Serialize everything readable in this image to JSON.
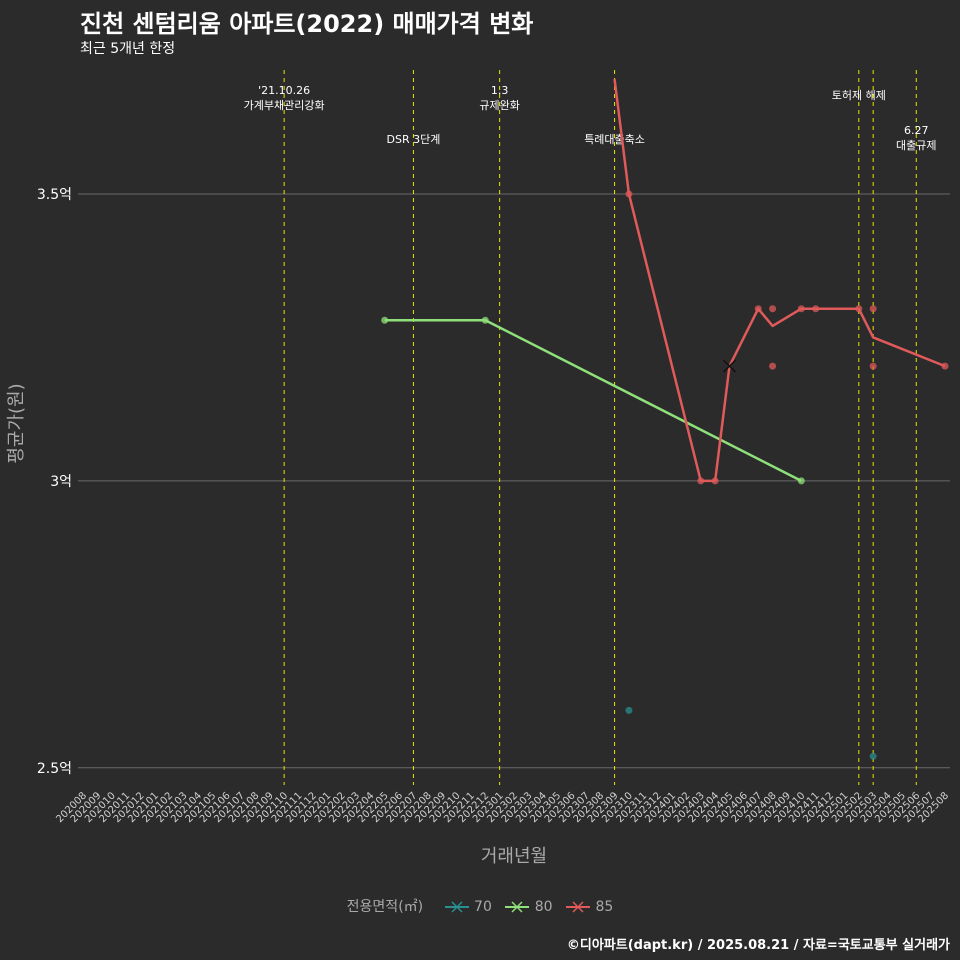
{
  "title": "진천 센텀리움 아파트(2022) 매매가격 변화",
  "subtitle": "최근 5개년 한정",
  "caption": "©디아파트(dapt.kr) / 2025.08.21 / 자료=국토교통부 실거래가",
  "colors": {
    "background": "#2b2b2c",
    "grid": "#6a6a6a",
    "event_line": "#e6e600",
    "s70": "#2a8f8f",
    "s80": "#8fe07a",
    "s85": "#e05a5a"
  },
  "chart_data": {
    "type": "line",
    "xlabel": "거래년월",
    "ylabel": "평균가(원)",
    "ylim": [
      2.47,
      3.73
    ],
    "yticks": [
      {
        "value": 2.5,
        "label": "2.5억"
      },
      {
        "value": 3.0,
        "label": "3억"
      },
      {
        "value": 3.5,
        "label": "3.5억"
      }
    ],
    "categories": [
      "202008",
      "202009",
      "202010",
      "202011",
      "202012",
      "202101",
      "202102",
      "202103",
      "202104",
      "202105",
      "202106",
      "202107",
      "202108",
      "202109",
      "202110",
      "202111",
      "202112",
      "202201",
      "202202",
      "202203",
      "202204",
      "202205",
      "202206",
      "202207",
      "202208",
      "202209",
      "202210",
      "202211",
      "202212",
      "202301",
      "202302",
      "202303",
      "202304",
      "202305",
      "202306",
      "202307",
      "202308",
      "202309",
      "202310",
      "202311",
      "202312",
      "202401",
      "202402",
      "202403",
      "202404",
      "202405",
      "202406",
      "202407",
      "202408",
      "202409",
      "202410",
      "202411",
      "202412",
      "202501",
      "202502",
      "202503",
      "202504",
      "202505",
      "202506",
      "202507",
      "202508"
    ],
    "legend_title": "전용면적(㎡)",
    "series": [
      {
        "name": "70",
        "line": [],
        "points": [
          {
            "x": "202310",
            "y": 2.6
          },
          {
            "x": "202503",
            "y": 2.52
          }
        ]
      },
      {
        "name": "80",
        "line": [
          {
            "x": "202205",
            "y": 3.28
          },
          {
            "x": "202212",
            "y": 3.28
          },
          {
            "x": "202410",
            "y": 3.0
          }
        ],
        "points": [
          {
            "x": "202205",
            "y": 3.28
          },
          {
            "x": "202212",
            "y": 3.28
          },
          {
            "x": "202410",
            "y": 3.0
          }
        ]
      },
      {
        "name": "85",
        "line": [
          {
            "x": "202309",
            "y": 3.7
          },
          {
            "x": "202310",
            "y": 3.5
          },
          {
            "x": "202403",
            "y": 3.0
          },
          {
            "x": "202404",
            "y": 3.0
          },
          {
            "x": "202405",
            "y": 3.2
          },
          {
            "x": "202407",
            "y": 3.3
          },
          {
            "x": "202408",
            "y": 3.27
          },
          {
            "x": "202410",
            "y": 3.3
          },
          {
            "x": "202411",
            "y": 3.3
          },
          {
            "x": "202502",
            "y": 3.3
          },
          {
            "x": "202503",
            "y": 3.25
          },
          {
            "x": "202508",
            "y": 3.2
          }
        ],
        "points": [
          {
            "x": "202310",
            "y": 3.5
          },
          {
            "x": "202403",
            "y": 3.0
          },
          {
            "x": "202404",
            "y": 3.0
          },
          {
            "x": "202407",
            "y": 3.3
          },
          {
            "x": "202408",
            "y": 3.3
          },
          {
            "x": "202408",
            "y": 3.2
          },
          {
            "x": "202410",
            "y": 3.3
          },
          {
            "x": "202411",
            "y": 3.3
          },
          {
            "x": "202502",
            "y": 3.3
          },
          {
            "x": "202503",
            "y": 3.3
          },
          {
            "x": "202503",
            "y": 3.2
          },
          {
            "x": "202508",
            "y": 3.2
          }
        ],
        "cross": [
          {
            "x": "202405",
            "y": 3.2
          }
        ]
      }
    ],
    "events": [
      {
        "x": "202110",
        "lines": [
          "'21.10.26",
          "가계부채관리강화"
        ],
        "level": 0
      },
      {
        "x": "202207",
        "lines": [
          "DSR 3단계"
        ],
        "level": 2
      },
      {
        "x": "202301",
        "lines": [
          "1.3",
          "규제완화"
        ],
        "level": 0
      },
      {
        "x": "202309",
        "lines": [
          "특례대출축소"
        ],
        "level": 2
      },
      {
        "x": "202502",
        "lines": [
          "토허제 해제"
        ],
        "level": 1
      },
      {
        "x": "202503",
        "lines": [],
        "level": 1
      },
      {
        "x": "202506",
        "lines": [
          "6.27",
          "대출규제"
        ],
        "level": 3
      }
    ]
  }
}
